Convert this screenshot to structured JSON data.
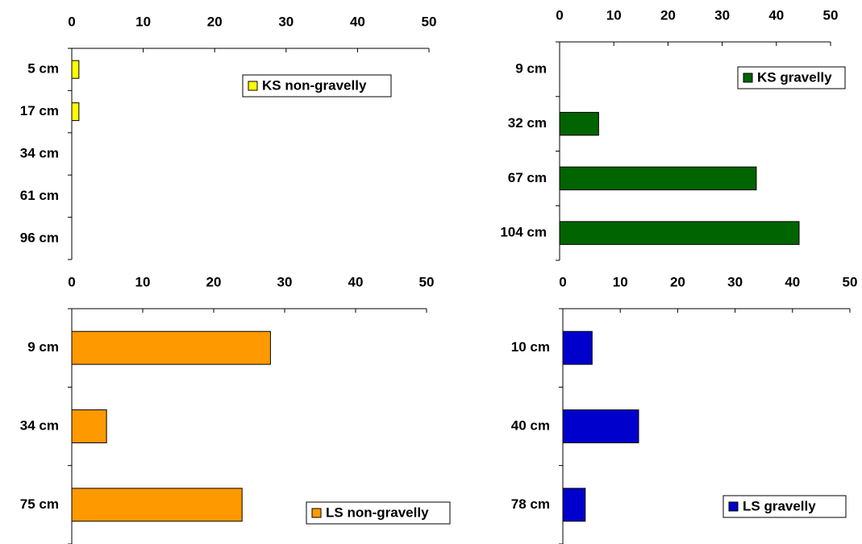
{
  "chart_data": [
    {
      "type": "bar",
      "orientation": "horizontal",
      "categories": [
        "5 cm",
        "17 cm",
        "34 cm",
        "61 cm",
        "96 cm"
      ],
      "series": [
        {
          "name": "KS non-gravelly",
          "color": "#ffff00",
          "values": [
            1,
            1,
            0,
            0,
            0
          ]
        }
      ],
      "xlim": [
        0,
        50
      ],
      "xticks": [
        0,
        10,
        20,
        30,
        40,
        50
      ]
    },
    {
      "type": "bar",
      "orientation": "horizontal",
      "categories": [
        "9 cm",
        "32 cm",
        "67 cm",
        "104 cm"
      ],
      "series": [
        {
          "name": "KS gravelly",
          "color": "#006400",
          "values": [
            0,
            7.2,
            36.3,
            44.2
          ]
        }
      ],
      "xlim": [
        0,
        50
      ],
      "xticks": [
        0,
        10,
        20,
        30,
        40,
        50
      ]
    },
    {
      "type": "bar",
      "orientation": "horizontal",
      "categories": [
        "9 cm",
        "34 cm",
        "75 cm"
      ],
      "series": [
        {
          "name": "LS non-gravelly",
          "color": "#ff9900",
          "values": [
            28,
            4.9,
            24
          ]
        }
      ],
      "xlim": [
        0,
        50
      ],
      "xticks": [
        0,
        10,
        20,
        30,
        40,
        50
      ]
    },
    {
      "type": "bar",
      "orientation": "horizontal",
      "categories": [
        "10 cm",
        "40 cm",
        "78 cm"
      ],
      "series": [
        {
          "name": "LS gravelly",
          "color": "#0000cc",
          "values": [
            5.1,
            13.2,
            3.9
          ]
        }
      ],
      "xlim": [
        0,
        50
      ],
      "xticks": [
        0,
        10,
        20,
        30,
        40,
        50
      ]
    }
  ]
}
